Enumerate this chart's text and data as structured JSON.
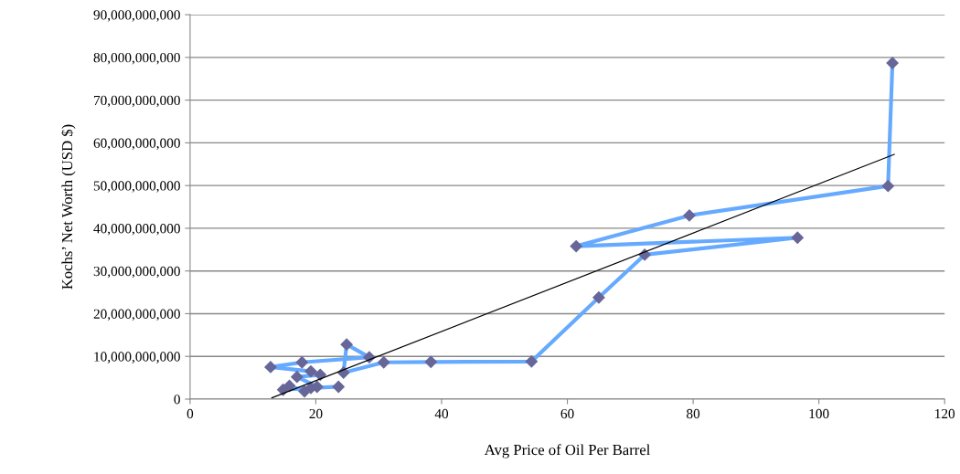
{
  "chart_data": {
    "type": "scatter",
    "xlabel": "Avg Price of Oil Per Barrel",
    "ylabel": "Kochs’ Net Worth (USD $)",
    "xlim": [
      0,
      120
    ],
    "xticks": [
      0,
      20,
      40,
      60,
      80,
      100,
      120
    ],
    "ylim": [
      0,
      90000000000
    ],
    "yticks": [
      {
        "value": 0,
        "label": "0"
      },
      {
        "value": 10000000000,
        "label": "10,000,000,000"
      },
      {
        "value": 20000000000,
        "label": "20,000,000,000"
      },
      {
        "value": 30000000000,
        "label": "30,000,000,000"
      },
      {
        "value": 40000000000,
        "label": "40,000,000,000"
      },
      {
        "value": 50000000000,
        "label": "50,000,000,000"
      },
      {
        "value": 60000000000,
        "label": "60,000,000,000"
      },
      {
        "value": 70000000000,
        "label": "70,000,000,000"
      },
      {
        "value": 80000000000,
        "label": "80,000,000,000"
      },
      {
        "value": 90000000000,
        "label": "90,000,000,000"
      }
    ],
    "grid": "y",
    "legend": false,
    "series": [
      {
        "type": "line",
        "color": "#66aaff",
        "marker": "none",
        "x": [
          23.6,
          19.2,
          14.8,
          15.8,
          18.2,
          20.2,
          17.0,
          20.7,
          19.2,
          12.8,
          17.8,
          28.5,
          24.9,
          24.4,
          30.8,
          38.3,
          54.3,
          65.0,
          72.3,
          96.6,
          61.4,
          79.4,
          111.0,
          111.7
        ],
        "values": [
          2900000000,
          2600000000,
          2200000000,
          3100000000,
          1800000000,
          2900000000,
          5200000000,
          5700000000,
          6500000000,
          7500000000,
          8600000000,
          9800000000,
          12800000000,
          6200000000,
          8600000000,
          8700000000,
          8800000000,
          23800000000,
          33800000000,
          37800000000,
          35800000000,
          43000000000,
          49900000000,
          78700000000
        ]
      },
      {
        "color": "#666699",
        "marker": "diamond",
        "x": [
          23.6,
          19.2,
          14.8,
          15.8,
          18.2,
          20.2,
          17.0,
          20.7,
          19.2,
          12.8,
          17.8,
          28.5,
          24.9,
          24.4,
          30.8,
          38.3,
          54.3,
          65.0,
          72.3,
          96.6,
          61.4,
          79.4,
          111.0,
          111.7
        ],
        "values": [
          2900000000,
          2600000000,
          2200000000,
          3100000000,
          1800000000,
          2900000000,
          5200000000,
          5700000000,
          6500000000,
          7500000000,
          8600000000,
          9800000000,
          12800000000,
          6200000000,
          8600000000,
          8700000000,
          8800000000,
          23800000000,
          33800000000,
          37800000000,
          35800000000,
          43000000000,
          49900000000,
          78700000000
        ]
      },
      {
        "type": "line",
        "color": "#000000",
        "marker": "none",
        "x": [
          13.0,
          112.0
        ],
        "values": [
          300000000,
          57300000000
        ]
      }
    ]
  }
}
